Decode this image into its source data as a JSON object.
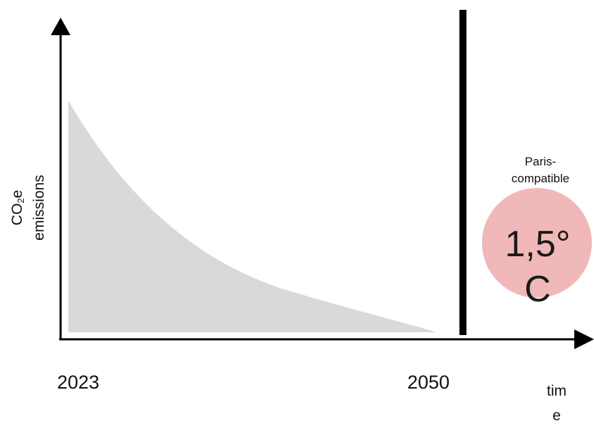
{
  "y_axis_label": {
    "line1_main": "CO",
    "line1_sub": "2",
    "line1_suffix": "e",
    "line2": "emissions"
  },
  "x_axis_ticks": [
    "2023",
    "2050"
  ],
  "x_axis_label": {
    "line1": "tim",
    "line2": "e"
  },
  "badge": {
    "caption_line1": "Paris-",
    "caption_line2": "compatible",
    "value_line1": "1,5°",
    "value_line2": "C"
  },
  "colors": {
    "emissions_area": "#d9d9d9",
    "axis": "#000000",
    "deadline_bar": "#000000",
    "badge_circle": "#f0b8b8"
  }
}
